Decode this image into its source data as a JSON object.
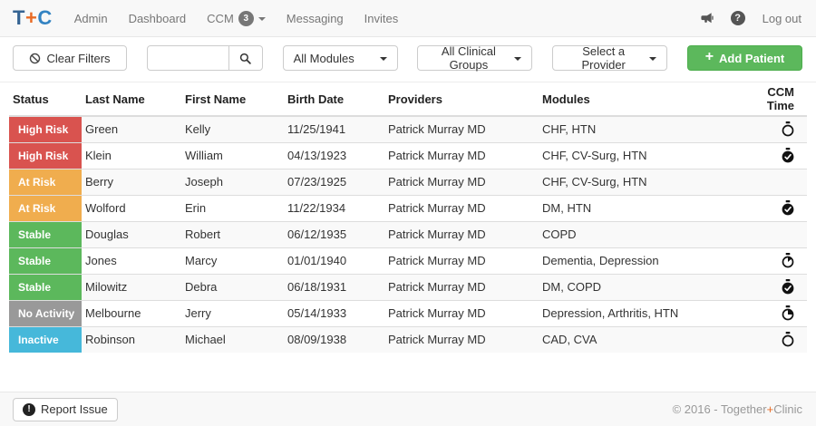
{
  "navbar": {
    "logo": {
      "part1": "T",
      "part2": "+",
      "part3": "C"
    },
    "items": [
      {
        "id": "admin",
        "label": "Admin"
      },
      {
        "id": "dashboard",
        "label": "Dashboard"
      },
      {
        "id": "ccm",
        "label": "CCM",
        "badge": "3"
      },
      {
        "id": "messaging",
        "label": "Messaging"
      },
      {
        "id": "invites",
        "label": "Invites"
      }
    ],
    "logout_label": "Log out"
  },
  "filters": {
    "clear_label": "Clear Filters",
    "search_value": "",
    "search_placeholder": "",
    "modules_selected": "All Modules",
    "clinical_groups_selected": "All Clinical Groups",
    "provider_selected": "Select a Provider",
    "add_patient_label": "Add Patient"
  },
  "table": {
    "headers": [
      "Status",
      "Last Name",
      "First Name",
      "Birth Date",
      "Providers",
      "Modules",
      "CCM Time"
    ],
    "rows": [
      {
        "status": "High Risk",
        "last_name": "Green",
        "first_name": "Kelly",
        "birth_date": "11/25/1941",
        "providers": "Patrick Murray MD",
        "modules": "CHF, HTN",
        "ccm_time_icon": "stopwatch-empty"
      },
      {
        "status": "High Risk",
        "last_name": "Klein",
        "first_name": "William",
        "birth_date": "04/13/1923",
        "providers": "Patrick Murray MD",
        "modules": "CHF, CV-Surg, HTN",
        "ccm_time_icon": "stopwatch-done"
      },
      {
        "status": "At Risk",
        "last_name": "Berry",
        "first_name": "Joseph",
        "birth_date": "07/23/1925",
        "providers": "Patrick Murray MD",
        "modules": "CHF, CV-Surg, HTN",
        "ccm_time_icon": "none"
      },
      {
        "status": "At Risk",
        "last_name": "Wolford",
        "first_name": "Erin",
        "birth_date": "11/22/1934",
        "providers": "Patrick Murray MD",
        "modules": "DM, HTN",
        "ccm_time_icon": "stopwatch-done"
      },
      {
        "status": "Stable",
        "last_name": "Douglas",
        "first_name": "Robert",
        "birth_date": "06/12/1935",
        "providers": "Patrick Murray MD",
        "modules": "COPD",
        "ccm_time_icon": "none"
      },
      {
        "status": "Stable",
        "last_name": "Jones",
        "first_name": "Marcy",
        "birth_date": "01/01/1940",
        "providers": "Patrick Murray MD",
        "modules": "Dementia, Depression",
        "ccm_time_icon": "stopwatch-low"
      },
      {
        "status": "Stable",
        "last_name": "Milowitz",
        "first_name": "Debra",
        "birth_date": "06/18/1931",
        "providers": "Patrick Murray MD",
        "modules": "DM, COPD",
        "ccm_time_icon": "stopwatch-done"
      },
      {
        "status": "No Activity",
        "last_name": "Melbourne",
        "first_name": "Jerry",
        "birth_date": "05/14/1933",
        "providers": "Patrick Murray MD",
        "modules": "Depression, Arthritis, HTN",
        "ccm_time_icon": "stopwatch-quarter"
      },
      {
        "status": "Inactive",
        "last_name": "Robinson",
        "first_name": "Michael",
        "birth_date": "08/09/1938",
        "providers": "Patrick Murray MD",
        "modules": "CAD, CVA",
        "ccm_time_icon": "stopwatch-empty"
      }
    ]
  },
  "status_colors": {
    "High Risk": "#d9534f",
    "At Risk": "#f0ad4e",
    "Stable": "#5cb85c",
    "No Activity": "#999999",
    "Inactive": "#46b8da"
  },
  "footer": {
    "report_issue_label": "Report Issue",
    "copyright": {
      "part1": "© 2016 - Together",
      "part2": "+",
      "part3": "Clinic"
    }
  },
  "icons": {
    "megaphone": "megaphone-icon",
    "help": "question-circle-icon",
    "clear": "ban-icon",
    "search": "search-icon",
    "add": "plus-icon",
    "report": "exclamation-circle-icon"
  }
}
